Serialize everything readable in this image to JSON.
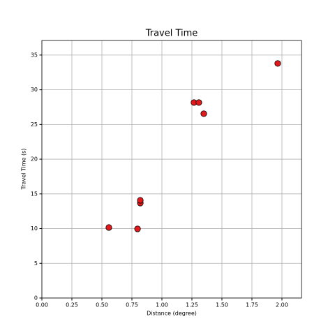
{
  "chart_data": {
    "type": "scatter",
    "title": "Travel Time",
    "x_label": "Distance (degree)",
    "y_label": "Travel Time (s)",
    "series": [
      {
        "color": "#e31a1c",
        "x": [
          0.558,
          0.797,
          0.82,
          0.82,
          1.267,
          1.308,
          1.349,
          1.965
        ],
        "values": [
          10.16,
          9.96,
          13.68,
          14.08,
          28.16,
          28.16,
          26.55,
          33.79
        ]
      }
    ],
    "xlim": [
      0,
      2.163
    ],
    "ylim": [
      0,
      37.1
    ],
    "xticks": [
      {
        "value": 0,
        "label": "0.00"
      },
      {
        "value": 0.25,
        "label": "0.25"
      },
      {
        "value": 0.5,
        "label": "0.50"
      },
      {
        "value": 0.75,
        "label": "0.75"
      },
      {
        "value": 1,
        "label": "1.00"
      },
      {
        "value": 1.25,
        "label": "1.25"
      },
      {
        "value": 1.5,
        "label": "1.50"
      },
      {
        "value": 1.75,
        "label": "1.75"
      },
      {
        "value": 2,
        "label": "2.00"
      }
    ],
    "yticks": [
      0,
      5,
      10,
      15,
      20,
      25,
      30,
      35
    ],
    "grid": true
  }
}
